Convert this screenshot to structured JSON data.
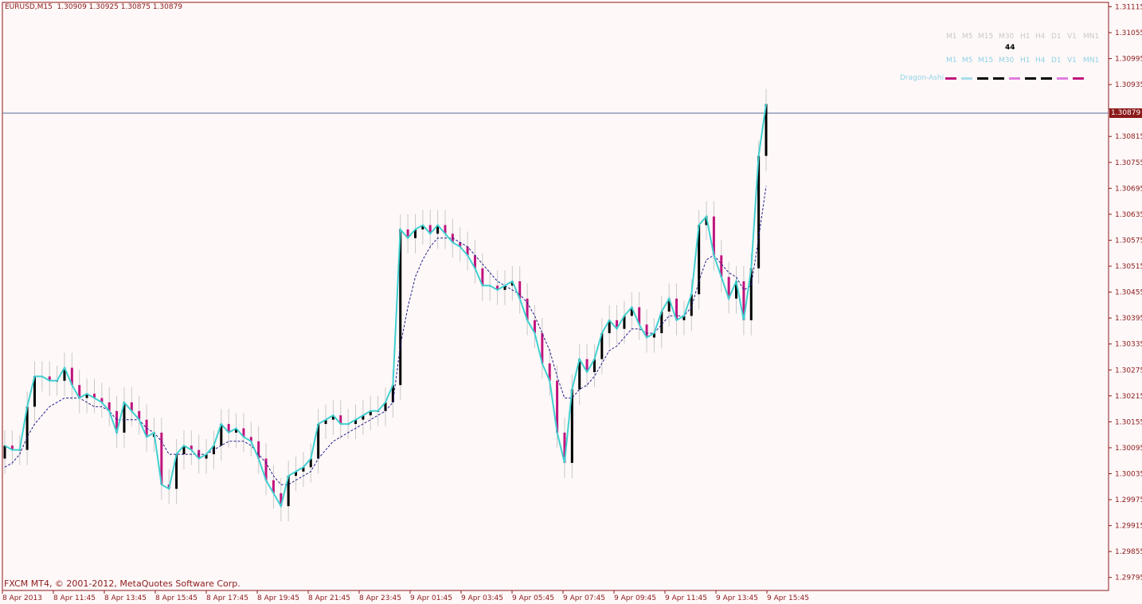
{
  "header": {
    "symbol": "EURUSD,M15",
    "ohlc": "1.30909 1.30925 1.30875 1.30879"
  },
  "copyright": "FXCM MT4, © 2001-2012, MetaQuotes Software Corp.",
  "timeframes_top": [
    "M1",
    "M5",
    "M15",
    "M30",
    "H1",
    "H4",
    "D1",
    "V1",
    "MN1"
  ],
  "timeframe_count": "44",
  "timeframes_mid": [
    "M1",
    "M5",
    "M15",
    "M30",
    "H1",
    "H4",
    "D1",
    "V1",
    "MN1"
  ],
  "indicator_label": "Dragon-Ashi",
  "current_price": "1.30879",
  "colors": {
    "bull": "#000000",
    "bear": "#C0147E",
    "line": "#40D0D0",
    "wick": "#C8C8C8",
    "axis": "#8B1A1A"
  },
  "chart_data": {
    "type": "candlestick",
    "ylim": [
      1.29765,
      1.31125
    ],
    "y_ticks": [
      "1.31115",
      "1.31055",
      "1.30995",
      "1.30935",
      "1.30879",
      "1.30815",
      "1.30755",
      "1.30695",
      "1.30635",
      "1.30575",
      "1.30515",
      "1.30455",
      "1.30395",
      "1.30335",
      "1.30275",
      "1.30215",
      "1.30155",
      "1.30095",
      "1.30035",
      "1.29975",
      "1.29915",
      "1.29855",
      "1.29795"
    ],
    "x_ticks": [
      "8 Apr 2013",
      "8 Apr 11:45",
      "8 Apr 13:45",
      "8 Apr 15:45",
      "8 Apr 17:45",
      "8 Apr 19:45",
      "8 Apr 21:45",
      "8 Apr 23:45",
      "9 Apr 01:45",
      "9 Apr 03:45",
      "9 Apr 05:45",
      "9 Apr 07:45",
      "9 Apr 09:45",
      "9 Apr 11:45",
      "9 Apr 13:45",
      "9 Apr 15:45"
    ],
    "series": [
      {
        "name": "Dragon-Ashi",
        "close": [
          1.301,
          1.3009,
          1.3009,
          1.3019,
          1.3026,
          1.3026,
          1.3025,
          1.3025,
          1.3028,
          1.3024,
          1.3021,
          1.3022,
          1.3021,
          1.302,
          1.3018,
          1.3013,
          1.302,
          1.3018,
          1.3016,
          1.3012,
          1.3013,
          1.3001,
          1.3,
          1.3008,
          1.301,
          1.3009,
          1.3007,
          1.3008,
          1.301,
          1.3015,
          1.3013,
          1.3014,
          1.3012,
          1.3011,
          1.3007,
          1.3002,
          1.2999,
          1.2996,
          1.3003,
          1.3004,
          1.3005,
          1.3007,
          1.3015,
          1.3016,
          1.3017,
          1.3015,
          1.3015,
          1.3016,
          1.3017,
          1.3018,
          1.3018,
          1.302,
          1.3024,
          1.306,
          1.3058,
          1.306,
          1.3061,
          1.3059,
          1.3061,
          1.3059,
          1.3057,
          1.3056,
          1.3054,
          1.3051,
          1.3047,
          1.3047,
          1.3046,
          1.3047,
          1.3048,
          1.3044,
          1.3039,
          1.3036,
          1.3029,
          1.3025,
          1.3013,
          1.3006,
          1.3023,
          1.303,
          1.3027,
          1.303,
          1.3036,
          1.3039,
          1.3037,
          1.304,
          1.3042,
          1.3038,
          1.3035,
          1.3036,
          1.3041,
          1.3044,
          1.3039,
          1.304,
          1.3045,
          1.3061,
          1.3063,
          1.3054,
          1.3049,
          1.3044,
          1.3048,
          1.3039,
          1.3051,
          1.3077,
          1.3089
        ],
        "ma": [
          1.3005,
          1.3006,
          1.3008,
          1.3012,
          1.3015,
          1.3017,
          1.3019,
          1.302,
          1.3021,
          1.3021,
          1.3021,
          1.302,
          1.3019,
          1.3019,
          1.3018,
          1.3016,
          1.3016,
          1.3016,
          1.3016,
          1.3014,
          1.3013,
          1.3011,
          1.3008,
          1.3008,
          1.3008,
          1.3008,
          1.3008,
          1.3008,
          1.3009,
          1.301,
          1.3011,
          1.3011,
          1.3011,
          1.301,
          1.3008,
          1.3006,
          1.3003,
          1.3001,
          1.3001,
          1.3002,
          1.3003,
          1.3004,
          1.3007,
          1.3009,
          1.3011,
          1.3012,
          1.3013,
          1.3014,
          1.3015,
          1.3016,
          1.3017,
          1.3018,
          1.302,
          1.3033,
          1.3042,
          1.3049,
          1.3053,
          1.3056,
          1.3058,
          1.3058,
          1.3058,
          1.3057,
          1.3056,
          1.3054,
          1.3052,
          1.305,
          1.3048,
          1.3047,
          1.3046,
          1.3045,
          1.3043,
          1.304,
          1.3036,
          1.3032,
          1.3026,
          1.3021,
          1.3021,
          1.3023,
          1.3024,
          1.3026,
          1.3029,
          1.3032,
          1.3033,
          1.3035,
          1.3037,
          1.3037,
          1.3036,
          1.3036,
          1.3038,
          1.304,
          1.304,
          1.304,
          1.3042,
          1.3048,
          1.3053,
          1.3054,
          1.3052,
          1.305,
          1.3049,
          1.3046,
          1.3047,
          1.3058,
          1.307
        ]
      }
    ]
  }
}
